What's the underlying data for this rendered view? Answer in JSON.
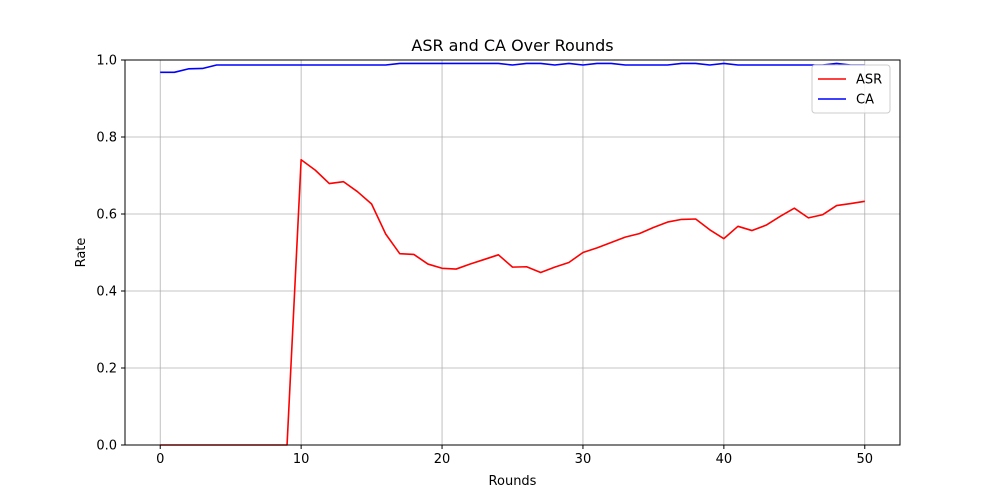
{
  "chart_data": {
    "type": "line",
    "title": "ASR and CA Over Rounds",
    "xlabel": "Rounds",
    "ylabel": "Rate",
    "xlim": [
      -2.5,
      52.5
    ],
    "ylim": [
      0.0,
      1.0
    ],
    "xticks": [
      0,
      10,
      20,
      30,
      40,
      50
    ],
    "yticks": [
      0.0,
      0.2,
      0.4,
      0.6,
      0.8,
      1.0
    ],
    "xtick_labels": [
      "0",
      "10",
      "20",
      "30",
      "40",
      "50"
    ],
    "ytick_labels": [
      "0.0",
      "0.2",
      "0.4",
      "0.6",
      "0.8",
      "1.0"
    ],
    "grid": true,
    "legend_position": "top-right",
    "x": [
      0,
      1,
      2,
      3,
      4,
      5,
      6,
      7,
      8,
      9,
      10,
      11,
      12,
      13,
      14,
      15,
      16,
      17,
      18,
      19,
      20,
      21,
      22,
      23,
      24,
      25,
      26,
      27,
      28,
      29,
      30,
      31,
      32,
      33,
      34,
      35,
      36,
      37,
      38,
      39,
      40,
      41,
      42,
      43,
      44,
      45,
      46,
      47,
      48,
      49,
      50
    ],
    "series": [
      {
        "name": "ASR",
        "color": "#ff0000",
        "values": [
          0.0,
          0.0,
          0.0,
          0.0,
          0.0,
          0.0,
          0.0,
          0.0,
          0.0,
          0.0,
          0.741,
          0.714,
          0.679,
          0.684,
          0.658,
          0.626,
          0.548,
          0.497,
          0.495,
          0.47,
          0.459,
          0.457,
          0.47,
          0.482,
          0.494,
          0.462,
          0.463,
          0.448,
          0.462,
          0.474,
          0.5,
          0.512,
          0.526,
          0.54,
          0.549,
          0.565,
          0.579,
          0.586,
          0.587,
          0.559,
          0.536,
          0.568,
          0.557,
          0.571,
          0.594,
          0.615,
          0.59,
          0.598,
          0.622,
          0.627,
          0.633
        ]
      },
      {
        "name": "CA",
        "color": "#0000ff",
        "values": [
          0.968,
          0.968,
          0.977,
          0.978,
          0.987,
          0.987,
          0.987,
          0.987,
          0.987,
          0.987,
          0.987,
          0.987,
          0.987,
          0.987,
          0.987,
          0.987,
          0.987,
          0.991,
          0.991,
          0.991,
          0.991,
          0.991,
          0.991,
          0.991,
          0.991,
          0.987,
          0.991,
          0.991,
          0.987,
          0.991,
          0.987,
          0.991,
          0.991,
          0.987,
          0.987,
          0.987,
          0.987,
          0.991,
          0.991,
          0.987,
          0.991,
          0.987,
          0.987,
          0.987,
          0.987,
          0.987,
          0.987,
          0.987,
          0.991,
          0.987,
          0.987
        ]
      }
    ]
  }
}
